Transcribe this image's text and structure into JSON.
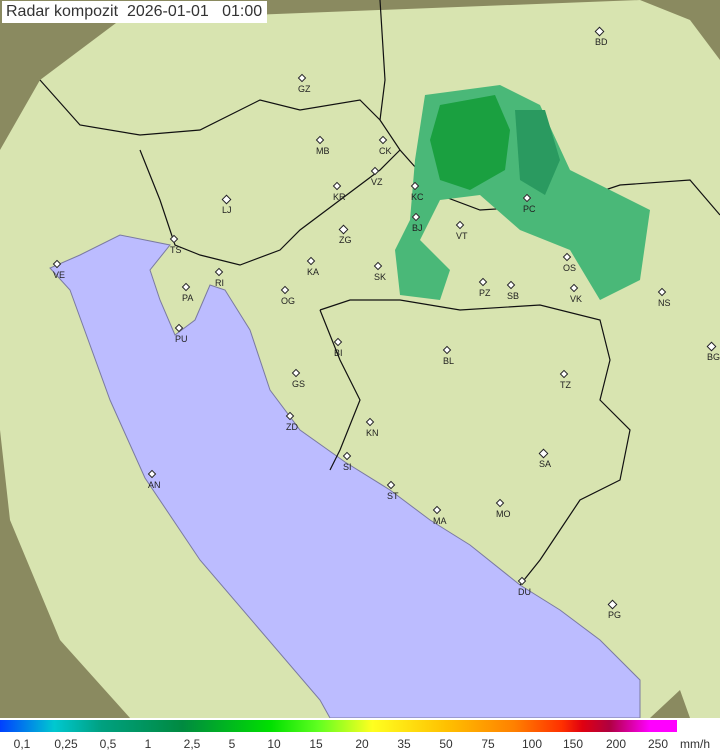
{
  "title": "Radar kompozit  2026-01-01   01:00",
  "colors": {
    "sea": "#bcbcff",
    "land": "#d8e4b0",
    "outside": "#8a8a60",
    "rain_light": "#4ab878",
    "rain_heavy": "#1aa040",
    "border": "#111111"
  },
  "cities": [
    {
      "code": "BD",
      "cap": true
    },
    {
      "code": "GZ"
    },
    {
      "code": "MB"
    },
    {
      "code": "CK"
    },
    {
      "code": "VZ"
    },
    {
      "code": "KR"
    },
    {
      "code": "LJ",
      "cap": true
    },
    {
      "code": "KC"
    },
    {
      "code": "PC"
    },
    {
      "code": "ZG",
      "cap": true
    },
    {
      "code": "TS"
    },
    {
      "code": "VT"
    },
    {
      "code": "BJ"
    },
    {
      "code": "VE"
    },
    {
      "code": "RI"
    },
    {
      "code": "KA"
    },
    {
      "code": "SK"
    },
    {
      "code": "OS"
    },
    {
      "code": "PA"
    },
    {
      "code": "OG"
    },
    {
      "code": "PZ"
    },
    {
      "code": "SB"
    },
    {
      "code": "VK"
    },
    {
      "code": "NS"
    },
    {
      "code": "PU"
    },
    {
      "code": "BG",
      "cap": true
    },
    {
      "code": "BI"
    },
    {
      "code": "BL"
    },
    {
      "code": "GS"
    },
    {
      "code": "TZ"
    },
    {
      "code": "ZD"
    },
    {
      "code": "KN"
    },
    {
      "code": "SA",
      "cap": true
    },
    {
      "code": "SI"
    },
    {
      "code": "AN"
    },
    {
      "code": "ST"
    },
    {
      "code": "MA"
    },
    {
      "code": "MO"
    },
    {
      "code": "DU"
    },
    {
      "code": "PG",
      "cap": true
    }
  ],
  "legend": {
    "ticks": [
      "0,1",
      "0,25",
      "0,5",
      "1",
      "2,5",
      "5",
      "10",
      "15",
      "20",
      "35",
      "50",
      "75",
      "100",
      "150",
      "200",
      "250"
    ],
    "unit": "mm/h"
  }
}
